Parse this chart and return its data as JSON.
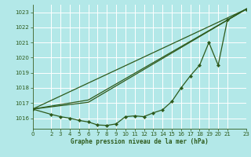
{
  "background_color": "#b3e8e8",
  "grid_color": "#ffffff",
  "line_color": "#2d5a1b",
  "title": "Graphe pression niveau de la mer (hPa)",
  "xlim": [
    0,
    23
  ],
  "ylim": [
    1015.3,
    1023.5
  ],
  "xticks": [
    0,
    2,
    3,
    4,
    5,
    6,
    7,
    8,
    9,
    10,
    11,
    12,
    13,
    14,
    15,
    16,
    17,
    18,
    19,
    20,
    21,
    23
  ],
  "yticks": [
    1016,
    1017,
    1018,
    1019,
    1020,
    1021,
    1022,
    1023
  ],
  "series1_x": [
    0,
    2,
    3,
    4,
    5,
    6,
    7,
    8,
    9,
    10,
    11,
    12,
    13,
    14,
    15,
    16,
    17,
    18,
    19,
    20,
    21,
    23
  ],
  "series1_y": [
    1016.6,
    1016.25,
    1016.1,
    1016.0,
    1015.85,
    1015.75,
    1015.55,
    1015.52,
    1015.62,
    1016.1,
    1016.15,
    1016.1,
    1016.35,
    1016.55,
    1017.1,
    1018.0,
    1018.8,
    1019.5,
    1021.0,
    1019.5,
    1022.5,
    1023.2
  ],
  "line1_x": [
    0,
    23
  ],
  "line1_y": [
    1016.6,
    1023.2
  ],
  "line2_x": [
    0,
    6,
    23
  ],
  "line2_y": [
    1016.6,
    1017.2,
    1023.2
  ],
  "line3_x": [
    0,
    6,
    23
  ],
  "line3_y": [
    1016.6,
    1017.05,
    1023.2
  ]
}
